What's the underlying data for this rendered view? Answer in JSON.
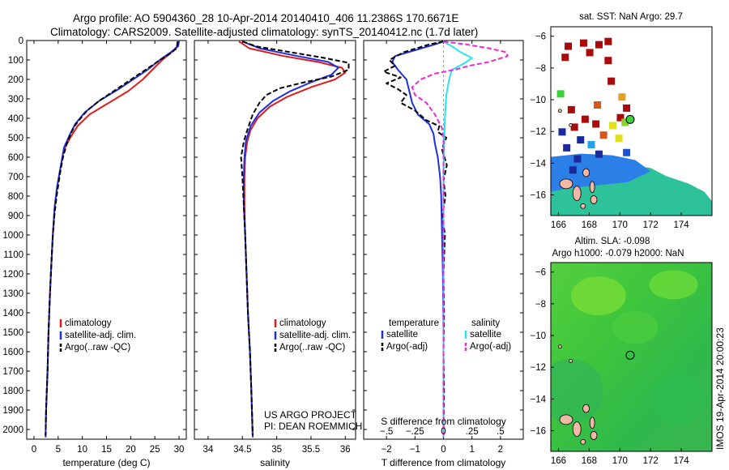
{
  "header": {
    "line1": "Argo profile: AO 5904360_28 10-Apr-2014 20140410_406 11.2386S 170.6671E",
    "line2": "Climatology: CARS2009. Satellite-adjusted climatology: synTS_20140412.nc (1.7d later)"
  },
  "colors": {
    "climatology": "#e01b1b",
    "satellite": "#1f2fe0",
    "argo": "#000000",
    "sal_satellite": "#28e4ee",
    "sal_argo": "#ee28d4"
  },
  "legend": {
    "climatology": "climatology",
    "satellite_adj": "satellite-adj. clim.",
    "argo": "Argo(..raw -QC)",
    "temperature": "temperature",
    "salinity": "salinity",
    "satellite": "satellite",
    "argo_adj": "Argo(-adj)"
  },
  "credits": {
    "project": "US ARGO PROJECT",
    "pi": "PI: DEAN ROEMMICH"
  },
  "imos_label": "IMOS 19-Apr-2014 20:00:23",
  "chart_data": [
    {
      "type": "line",
      "panel": "temperature",
      "xlabel": "temperature (deg C)",
      "ylabel": "",
      "xlim": [
        -1.5,
        31.5
      ],
      "ylim": [
        2050,
        0
      ],
      "xticks": [
        0,
        5,
        10,
        15,
        20,
        25,
        30
      ],
      "yticks": [
        0,
        100,
        200,
        300,
        400,
        500,
        600,
        700,
        800,
        900,
        1000,
        1100,
        1200,
        1300,
        1400,
        1500,
        1600,
        1700,
        1800,
        1900,
        2000
      ],
      "series": [
        {
          "name": "climatology",
          "color": "#e01b1b",
          "dash": "",
          "points": [
            [
              29.8,
              5
            ],
            [
              29.6,
              30
            ],
            [
              28.5,
              60
            ],
            [
              26.5,
              100
            ],
            [
              24.5,
              150
            ],
            [
              22.5,
              200
            ],
            [
              19.5,
              260
            ],
            [
              15.5,
              320
            ],
            [
              11.5,
              380
            ],
            [
              9,
              440
            ],
            [
              7.5,
              500
            ],
            [
              6.2,
              560
            ],
            [
              5.5,
              650
            ],
            [
              4.8,
              750
            ],
            [
              4.3,
              850
            ],
            [
              3.9,
              1000
            ],
            [
              3.6,
              1150
            ],
            [
              3.3,
              1300
            ],
            [
              3,
              1500
            ],
            [
              2.8,
              1700
            ],
            [
              2.5,
              1900
            ],
            [
              2.4,
              2040
            ]
          ]
        },
        {
          "name": "satellite-adj. clim.",
          "color": "#1f2fe0",
          "dash": "",
          "points": [
            [
              30,
              5
            ],
            [
              29.8,
              30
            ],
            [
              28.3,
              60
            ],
            [
              26,
              100
            ],
            [
              23.5,
              150
            ],
            [
              20.5,
              200
            ],
            [
              17.5,
              250
            ],
            [
              13.5,
              310
            ],
            [
              10.5,
              370
            ],
            [
              8.5,
              430
            ],
            [
              7.3,
              490
            ],
            [
              6.2,
              550
            ],
            [
              5.5,
              650
            ],
            [
              4.8,
              750
            ],
            [
              4.3,
              850
            ],
            [
              3.9,
              1000
            ],
            [
              3.6,
              1150
            ],
            [
              3.3,
              1300
            ],
            [
              3,
              1500
            ],
            [
              2.8,
              1700
            ],
            [
              2.5,
              1900
            ],
            [
              2.4,
              2040
            ]
          ]
        },
        {
          "name": "Argo(..raw -QC)",
          "color": "#000000",
          "dash": "6,3",
          "points": [
            [
              29.7,
              5
            ],
            [
              29.5,
              40
            ],
            [
              28,
              70
            ],
            [
              25.5,
              110
            ],
            [
              22.5,
              160
            ],
            [
              19.5,
              210
            ],
            [
              16.5,
              260
            ],
            [
              13.5,
              310
            ],
            [
              11,
              360
            ],
            [
              9.3,
              410
            ],
            [
              8.4,
              440
            ],
            [
              7.6,
              480
            ],
            [
              6.8,
              530
            ],
            [
              6,
              600
            ],
            [
              5.4,
              680
            ],
            [
              4.8,
              780
            ],
            [
              4.3,
              880
            ],
            [
              3.9,
              1000
            ],
            [
              3.6,
              1150
            ],
            [
              3.3,
              1300
            ],
            [
              3,
              1500
            ],
            [
              2.8,
              1700
            ],
            [
              2.5,
              1900
            ],
            [
              2.4,
              2030
            ]
          ]
        }
      ]
    },
    {
      "type": "line",
      "panel": "salinity",
      "xlabel": "salinity",
      "ylabel": "",
      "xlim": [
        33.8,
        36.15
      ],
      "ylim": [
        2050,
        0
      ],
      "xticks": [
        34,
        34.5,
        35,
        35.5,
        36
      ],
      "series": [
        {
          "name": "climatology",
          "color": "#e01b1b",
          "dash": "",
          "points": [
            [
              34.45,
              5
            ],
            [
              34.6,
              40
            ],
            [
              35.1,
              80
            ],
            [
              35.6,
              110
            ],
            [
              35.95,
              140
            ],
            [
              36,
              165
            ],
            [
              35.85,
              200
            ],
            [
              35.5,
              240
            ],
            [
              35.15,
              290
            ],
            [
              34.9,
              340
            ],
            [
              34.72,
              400
            ],
            [
              34.62,
              460
            ],
            [
              34.57,
              520
            ],
            [
              34.54,
              600
            ],
            [
              34.53,
              700
            ],
            [
              34.53,
              850
            ],
            [
              34.54,
              1000
            ],
            [
              34.56,
              1200
            ],
            [
              34.58,
              1400
            ],
            [
              34.61,
              1600
            ],
            [
              34.63,
              1800
            ],
            [
              34.65,
              2040
            ]
          ]
        },
        {
          "name": "satellite-adj. clim.",
          "color": "#1f2fe0",
          "dash": "",
          "points": [
            [
              34.5,
              5
            ],
            [
              34.75,
              40
            ],
            [
              35.3,
              80
            ],
            [
              35.75,
              110
            ],
            [
              35.9,
              140
            ],
            [
              35.8,
              175
            ],
            [
              35.5,
              215
            ],
            [
              35.2,
              260
            ],
            [
              34.95,
              310
            ],
            [
              34.75,
              370
            ],
            [
              34.62,
              440
            ],
            [
              34.55,
              520
            ],
            [
              34.53,
              600
            ],
            [
              34.52,
              700
            ],
            [
              34.52,
              850
            ],
            [
              34.54,
              1000
            ],
            [
              34.56,
              1200
            ],
            [
              34.58,
              1400
            ],
            [
              34.61,
              1600
            ],
            [
              34.63,
              1800
            ],
            [
              34.65,
              2040
            ]
          ]
        },
        {
          "name": "Argo(..raw -QC)",
          "color": "#000000",
          "dash": "6,3",
          "points": [
            [
              34.5,
              5
            ],
            [
              34.7,
              30
            ],
            [
              35.2,
              60
            ],
            [
              35.7,
              90
            ],
            [
              36.05,
              115
            ],
            [
              36.05,
              150
            ],
            [
              35.8,
              185
            ],
            [
              35.4,
              215
            ],
            [
              35.05,
              245
            ],
            [
              34.85,
              280
            ],
            [
              34.75,
              320
            ],
            [
              34.65,
              380
            ],
            [
              34.58,
              450
            ],
            [
              34.52,
              520
            ],
            [
              34.48,
              600
            ],
            [
              34.5,
              700
            ],
            [
              34.52,
              850
            ],
            [
              34.54,
              1000
            ],
            [
              34.56,
              1200
            ],
            [
              34.58,
              1400
            ],
            [
              34.61,
              1600
            ],
            [
              34.63,
              1800
            ],
            [
              34.65,
              2030
            ]
          ]
        }
      ]
    },
    {
      "type": "line",
      "panel": "difference",
      "xlabel": "T difference from climatology",
      "xlabel_top": "S difference from climatology",
      "ylabel": "",
      "xlim": [
        -2.8,
        2.8
      ],
      "ylim": [
        2050,
        0
      ],
      "xticks_T": [
        -2,
        -1,
        0,
        1,
        2
      ],
      "xticks_S": [
        -0.5,
        -0.25,
        0,
        0.25,
        0.5
      ],
      "series": [
        {
          "name": "temperature satellite",
          "color": "#1f2fe0",
          "dash": "",
          "points": [
            [
              0,
              5
            ],
            [
              -0.3,
              20
            ],
            [
              -1,
              50
            ],
            [
              -1.7,
              80
            ],
            [
              -1.8,
              110
            ],
            [
              -1.6,
              150
            ],
            [
              -1.3,
              200
            ],
            [
              -1.2,
              260
            ],
            [
              -1.1,
              320
            ],
            [
              -0.9,
              380
            ],
            [
              -0.5,
              430
            ],
            [
              -0.35,
              480
            ],
            [
              -0.3,
              530
            ],
            [
              -0.2,
              600
            ],
            [
              -0.12,
              700
            ],
            [
              -0.08,
              800
            ],
            [
              -0.05,
              1000
            ],
            [
              -0.02,
              1200
            ],
            [
              0,
              1500
            ],
            [
              0,
              2040
            ]
          ]
        },
        {
          "name": "temperature Argo(-adj)",
          "color": "#000000",
          "dash": "6,3",
          "points": [
            [
              0,
              5
            ],
            [
              -0.5,
              20
            ],
            [
              -1.4,
              60
            ],
            [
              -1.9,
              100
            ],
            [
              -1.7,
              130
            ],
            [
              -2.1,
              160
            ],
            [
              -1.5,
              190
            ],
            [
              -2,
              220
            ],
            [
              -1.6,
              250
            ],
            [
              -1.3,
              280
            ],
            [
              -1.5,
              320
            ],
            [
              -1,
              360
            ],
            [
              -0.6,
              410
            ],
            [
              -0.15,
              440
            ],
            [
              -0.2,
              470
            ],
            [
              0.1,
              500
            ],
            [
              -0.05,
              560
            ],
            [
              0.12,
              640
            ],
            [
              0,
              720
            ],
            [
              0.07,
              800
            ],
            [
              -0.04,
              900
            ],
            [
              0.05,
              1000
            ],
            [
              0,
              1200
            ],
            [
              0.02,
              1400
            ],
            [
              0,
              1600
            ],
            [
              0.02,
              1800
            ],
            [
              0,
              2030
            ]
          ]
        },
        {
          "name": "salinity satellite",
          "color": "#28e4ee",
          "dash": "",
          "points": [
            [
              0,
              5
            ],
            [
              0.3,
              30
            ],
            [
              0.6,
              60
            ],
            [
              1,
              90
            ],
            [
              0.7,
              120
            ],
            [
              0.3,
              150
            ],
            [
              0.2,
              200
            ],
            [
              0.1,
              280
            ],
            [
              0.05,
              400
            ],
            [
              0.02,
              550
            ],
            [
              0,
              700
            ],
            [
              0,
              2040
            ]
          ]
        },
        {
          "name": "salinity Argo(-adj)",
          "color": "#ee28d4",
          "dash": "6,3",
          "points": [
            [
              0,
              5
            ],
            [
              0.8,
              20
            ],
            [
              1.6,
              40
            ],
            [
              2.2,
              60
            ],
            [
              2.25,
              80
            ],
            [
              1.6,
              110
            ],
            [
              0.9,
              130
            ],
            [
              0.4,
              150
            ],
            [
              -0.3,
              170
            ],
            [
              -0.8,
              200
            ],
            [
              -1.1,
              240
            ],
            [
              -1,
              280
            ],
            [
              -0.6,
              320
            ],
            [
              -0.3,
              380
            ],
            [
              -0.05,
              450
            ],
            [
              0,
              500
            ],
            [
              0,
              2030
            ]
          ]
        }
      ]
    },
    {
      "type": "heatmap",
      "panel": "sst_map",
      "title": "sat. SST: NaN Argo: 29.7",
      "xlim": [
        165.5,
        176
      ],
      "ylim": [
        -17.3,
        -5.4
      ],
      "xticks": [
        166,
        168,
        170,
        172,
        174
      ],
      "yticks": [
        -6,
        -8,
        -10,
        -12,
        -14,
        -16
      ],
      "argo_position": {
        "lon": 170.67,
        "lat": -11.24
      }
    },
    {
      "type": "heatmap",
      "panel": "sla_map",
      "title": "Altim. SLA: -0.098",
      "subtitle": "Argo h1000: -0.079 h2000: NaN",
      "xlim": [
        165.5,
        176
      ],
      "ylim": [
        -17.3,
        -5.4
      ],
      "xticks": [
        166,
        168,
        170,
        172,
        174
      ],
      "yticks": [
        -6,
        -8,
        -10,
        -12,
        -14,
        -16
      ],
      "argo_position": {
        "lon": 170.67,
        "lat": -11.24
      }
    }
  ]
}
